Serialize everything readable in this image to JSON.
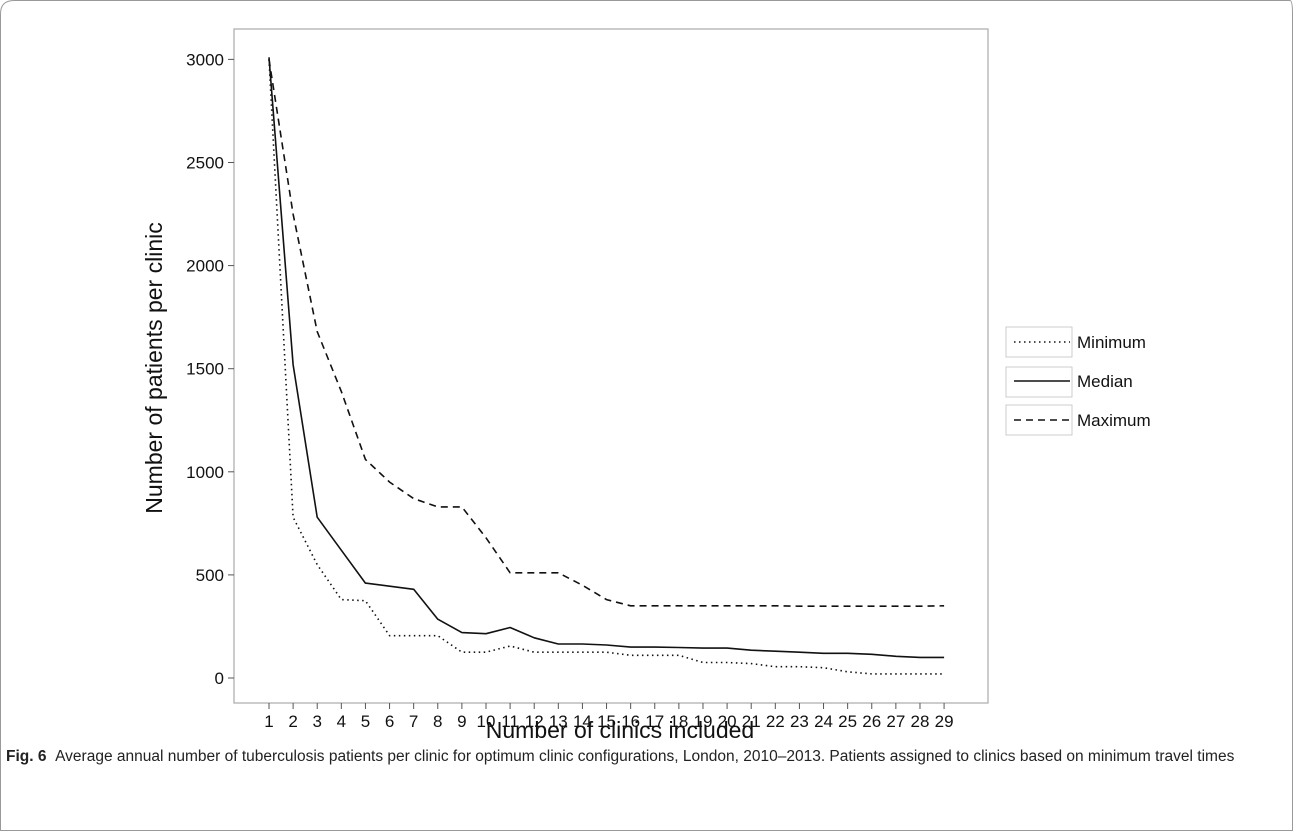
{
  "chart_data": {
    "type": "line",
    "x": [
      1,
      2,
      3,
      4,
      5,
      6,
      7,
      8,
      9,
      10,
      11,
      12,
      13,
      14,
      15,
      16,
      17,
      18,
      19,
      20,
      21,
      22,
      23,
      24,
      25,
      26,
      27,
      28,
      29
    ],
    "series": [
      {
        "name": "Minimum",
        "style": "dotted",
        "values": [
          3000,
          780,
          550,
          380,
          375,
          205,
          205,
          205,
          125,
          125,
          155,
          125,
          125,
          125,
          125,
          110,
          110,
          110,
          75,
          75,
          70,
          55,
          55,
          50,
          30,
          20,
          20,
          20,
          20
        ]
      },
      {
        "name": "Median",
        "style": "solid",
        "values": [
          3010,
          1520,
          780,
          620,
          460,
          445,
          430,
          285,
          220,
          215,
          245,
          195,
          165,
          165,
          160,
          150,
          150,
          148,
          145,
          145,
          135,
          130,
          125,
          120,
          120,
          115,
          105,
          100,
          100
        ]
      },
      {
        "name": "Maximum",
        "style": "dashed",
        "values": [
          3000,
          2250,
          1680,
          1390,
          1060,
          950,
          870,
          830,
          830,
          680,
          510,
          510,
          510,
          450,
          380,
          350,
          350,
          350,
          350,
          350,
          350,
          350,
          348,
          348,
          348,
          348,
          348,
          348,
          350
        ]
      }
    ],
    "xlabel": "Number of clinics included",
    "ylabel": "Number of patients per clinic",
    "ylim": [
      -120,
      3120
    ],
    "yticks": [
      0,
      500,
      1000,
      1500,
      2000,
      2500,
      3000
    ],
    "xticks": [
      1,
      2,
      3,
      4,
      5,
      6,
      7,
      8,
      9,
      10,
      11,
      12,
      13,
      14,
      15,
      16,
      17,
      18,
      19,
      20,
      21,
      22,
      23,
      24,
      25,
      26,
      27,
      28,
      29
    ],
    "grid": false,
    "legend_position": "right",
    "colors": {
      "line": "#111111",
      "panel_border": "#a9a9a9",
      "frame": "#999999"
    }
  },
  "caption": {
    "label": "Fig. 6",
    "text": "Average annual number of tuberculosis patients per clinic for optimum clinic configurations, London, 2010–2013. Patients assigned to clinics based on minimum travel times"
  }
}
